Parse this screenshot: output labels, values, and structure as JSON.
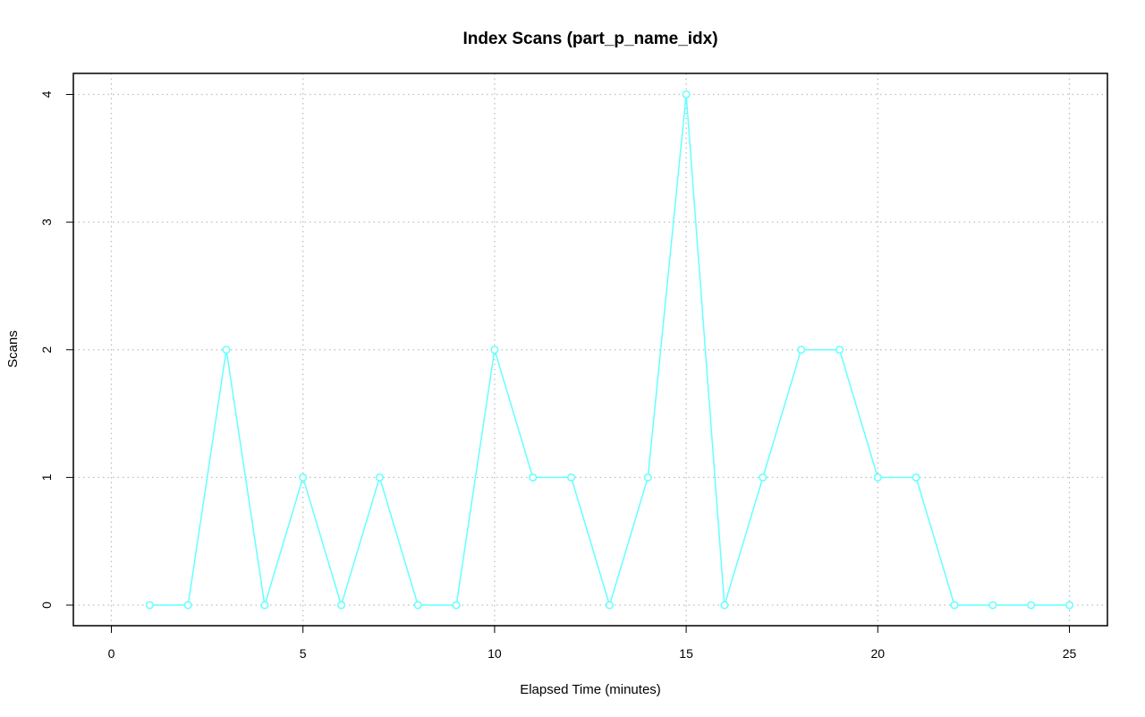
{
  "chart_data": {
    "type": "line",
    "title": "Index Scans (part_p_name_idx)",
    "xlabel": "Elapsed Time (minutes)",
    "ylabel": "Scans",
    "xlim": [
      0,
      25
    ],
    "ylim": [
      0,
      4
    ],
    "x_ticks": [
      "0",
      "5",
      "10",
      "15",
      "20",
      "25"
    ],
    "y_ticks": [
      "0",
      "1",
      "2",
      "3",
      "4"
    ],
    "grid": true,
    "series": [
      {
        "color": "#66ffff",
        "x": [
          1,
          2,
          3,
          4,
          5,
          6,
          7,
          8,
          9,
          10,
          11,
          12,
          13,
          14,
          15,
          16,
          17,
          18,
          19,
          20,
          21,
          22,
          23,
          24,
          25
        ],
        "values": [
          0,
          0,
          2,
          0,
          1,
          0,
          1,
          0,
          0,
          2,
          1,
          1,
          0,
          1,
          4,
          0,
          1,
          2,
          2,
          1,
          1,
          0,
          0,
          0,
          0
        ]
      }
    ]
  }
}
